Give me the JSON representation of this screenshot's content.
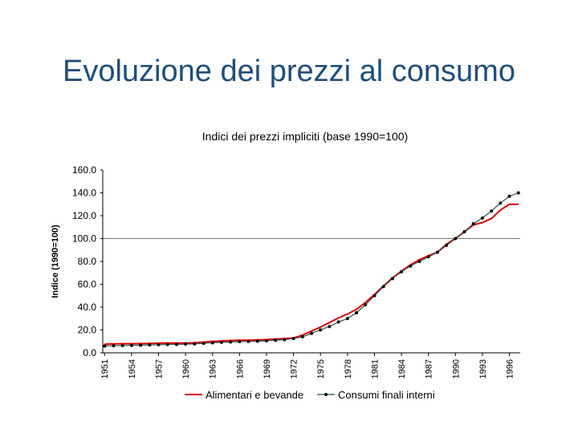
{
  "slide": {
    "title": "Evoluzione dei prezzi al consumo"
  },
  "chart_data": {
    "type": "line",
    "title": "Indici dei prezzi impliciti (base 1990=100)",
    "xlabel": "",
    "ylabel": "Indice (1990=100)",
    "ylim": [
      0,
      160
    ],
    "y_ticks": [
      "0.0",
      "20.0",
      "40.0",
      "60.0",
      "80.0",
      "100.0",
      "120.0",
      "140.0",
      "160.0"
    ],
    "x_ticks": [
      "1951",
      "1954",
      "1957",
      "1960",
      "1963",
      "1966",
      "1969",
      "1972",
      "1975",
      "1978",
      "1981",
      "1984",
      "1987",
      "1990",
      "1993",
      "1996"
    ],
    "grid": "horizontal at 100.0",
    "legend_position": "bottom",
    "x": [
      1951,
      1952,
      1953,
      1954,
      1955,
      1956,
      1957,
      1958,
      1959,
      1960,
      1961,
      1962,
      1963,
      1964,
      1965,
      1966,
      1967,
      1968,
      1969,
      1970,
      1971,
      1972,
      1973,
      1974,
      1975,
      1976,
      1977,
      1978,
      1979,
      1980,
      1981,
      1982,
      1983,
      1984,
      1985,
      1986,
      1987,
      1988,
      1989,
      1990,
      1991,
      1992,
      1993,
      1994,
      1995,
      1996,
      1997
    ],
    "series": [
      {
        "name": "Alimentari e bevande",
        "color": "#e00000",
        "marker": "none",
        "values": [
          7.5,
          7.8,
          8.0,
          8.0,
          8.1,
          8.2,
          8.4,
          8.6,
          8.5,
          8.6,
          8.8,
          9.4,
          10.0,
          10.4,
          10.8,
          11.0,
          11.0,
          11.2,
          11.6,
          12.0,
          12.4,
          13.0,
          15.5,
          19.0,
          22.5,
          26.5,
          30.5,
          34.0,
          38.0,
          44.0,
          51.0,
          58.5,
          65.5,
          71.5,
          77.0,
          81.5,
          85.0,
          88.0,
          95.0,
          100.0,
          106.0,
          112.0,
          114.0,
          117.5,
          125.0,
          130.0,
          130.0
        ]
      },
      {
        "name": "Consumi finali interni",
        "color": "#2f4f4f",
        "marker": "dot",
        "values": [
          6.0,
          6.2,
          6.4,
          6.5,
          6.7,
          6.9,
          7.1,
          7.3,
          7.4,
          7.6,
          7.8,
          8.3,
          8.8,
          9.2,
          9.5,
          9.8,
          10.0,
          10.2,
          10.5,
          11.0,
          11.5,
          12.5,
          14.0,
          17.0,
          20.0,
          23.0,
          27.0,
          30.0,
          35.0,
          42.0,
          50.0,
          58.0,
          65.0,
          71.0,
          76.0,
          80.0,
          84.0,
          88.0,
          94.0,
          100.0,
          106.0,
          113.0,
          118.0,
          124.0,
          131.0,
          137.0,
          140.0
        ]
      }
    ]
  }
}
